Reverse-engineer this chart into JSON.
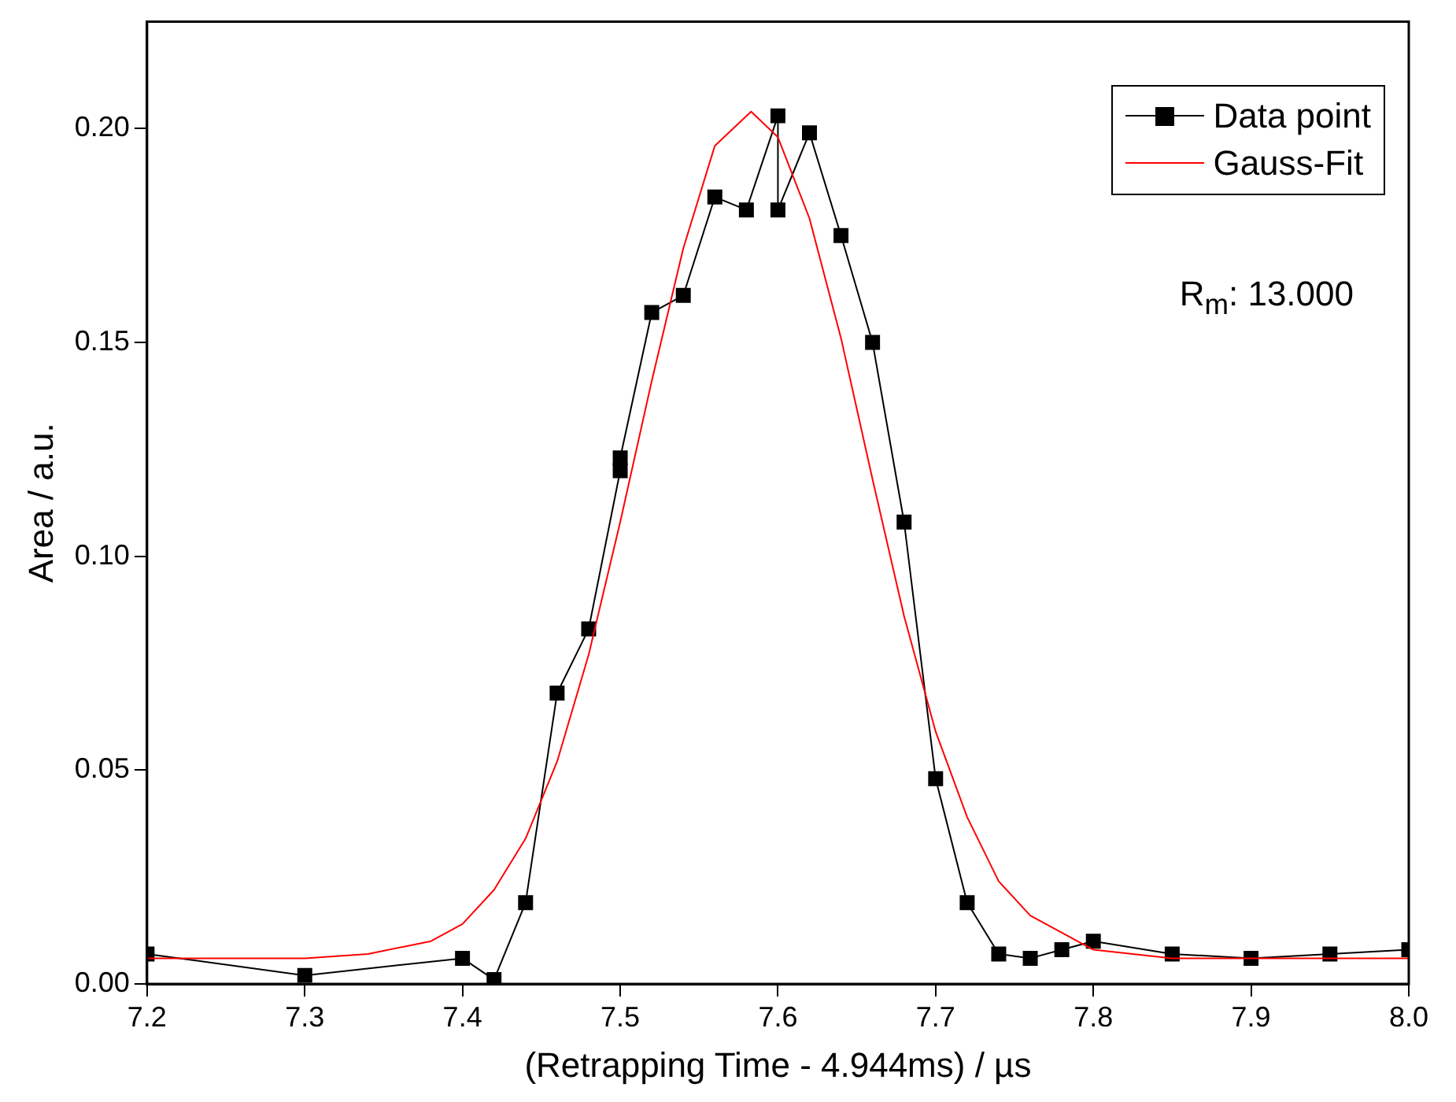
{
  "chart_data": {
    "type": "line",
    "xlabel": "(Retrapping Time - 4.944ms) / µs",
    "ylabel": "Area / a.u.",
    "xlim": [
      7.2,
      8.0
    ],
    "xticks": [
      {
        "value": 7.2,
        "label": "7.2"
      },
      {
        "value": 7.3,
        "label": "7.3"
      },
      {
        "value": 7.4,
        "label": "7.4"
      },
      {
        "value": 7.5,
        "label": "7.5"
      },
      {
        "value": 7.6,
        "label": "7.6"
      },
      {
        "value": 7.7,
        "label": "7.7"
      },
      {
        "value": 7.8,
        "label": "7.8"
      },
      {
        "value": 7.9,
        "label": "7.9"
      },
      {
        "value": 8.0,
        "label": "8.0"
      }
    ],
    "ylim": [
      0,
      0.225
    ],
    "yticks": [
      {
        "value": 0,
        "label": "0.00"
      },
      {
        "value": 0.05,
        "label": "0.05"
      },
      {
        "value": 0.1,
        "label": "0.10"
      },
      {
        "value": 0.15,
        "label": "0.15"
      },
      {
        "value": 0.2,
        "label": "0.20"
      }
    ],
    "grid": false,
    "legend": "top right",
    "annotations": [
      "R$_{m}$: 13.000"
    ],
    "series": [
      {
        "name": "Data point",
        "color": "#000000",
        "marker": "square",
        "line_style": "solid",
        "x": [
          7.2,
          7.3,
          7.4,
          7.42,
          7.44,
          7.46,
          7.48,
          7.5,
          7.5,
          7.52,
          7.54,
          7.56,
          7.58,
          7.6,
          7.6,
          7.62,
          7.64,
          7.66,
          7.68,
          7.7,
          7.72,
          7.74,
          7.76,
          7.78,
          7.8,
          7.85,
          7.9,
          7.95,
          8.0
        ],
        "values": [
          0.007,
          0.002,
          0.006,
          0.001,
          0.019,
          0.068,
          0.083,
          0.12,
          0.123,
          0.157,
          0.161,
          0.184,
          0.181,
          0.203,
          0.181,
          0.199,
          0.175,
          0.15,
          0.108,
          0.048,
          0.019,
          0.007,
          0.006,
          0.008,
          0.01,
          0.007,
          0.006,
          0.007,
          0.008
        ]
      },
      {
        "name": "Gauss-Fit",
        "color": "#ff0000",
        "marker": "none",
        "line_style": "solid",
        "x": [
          7.2,
          7.3,
          7.34,
          7.38,
          7.4,
          7.42,
          7.44,
          7.46,
          7.48,
          7.5,
          7.52,
          7.54,
          7.56,
          7.583,
          7.6,
          7.62,
          7.64,
          7.66,
          7.68,
          7.7,
          7.72,
          7.74,
          7.76,
          7.8,
          7.85,
          8.0
        ],
        "values": [
          0.006,
          0.006,
          0.007,
          0.01,
          0.014,
          0.022,
          0.034,
          0.052,
          0.077,
          0.108,
          0.141,
          0.172,
          0.196,
          0.204,
          0.198,
          0.179,
          0.151,
          0.118,
          0.086,
          0.059,
          0.039,
          0.024,
          0.016,
          0.008,
          0.006,
          0.006
        ]
      }
    ]
  }
}
